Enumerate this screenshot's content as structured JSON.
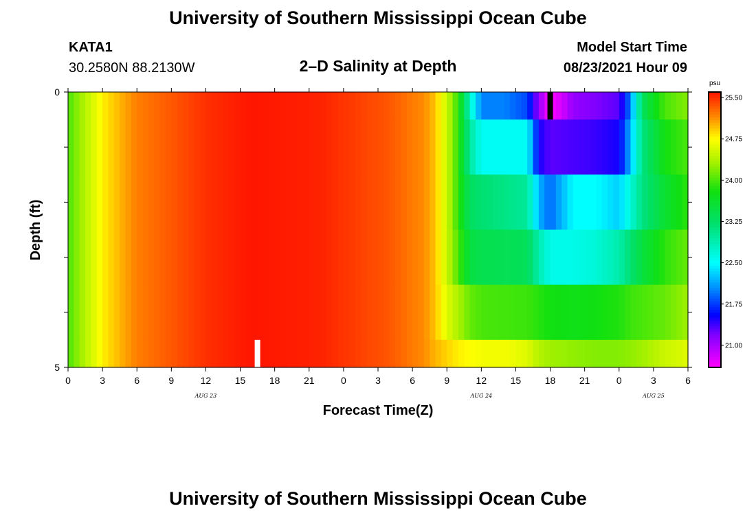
{
  "header": {
    "title_top": "University of Southern Mississippi Ocean Cube",
    "title_bottom": "University of Southern Mississippi Ocean Cube",
    "station_id": "KATA1",
    "coords": "30.2580N  88.2130W",
    "plot_title": "2–D Salinity at Depth",
    "model_label": "Model Start Time",
    "model_time": "08/23/2021 Hour 09"
  },
  "chart_data": {
    "type": "heatmap",
    "title": "2-D Salinity at Depth",
    "xlabel": "Forecast Time(Z)",
    "ylabel": "Depth (ft)",
    "x_hours_range": [
      0,
      54
    ],
    "x_tick_step_hours": 3,
    "x_tick_labels": [
      "0",
      "3",
      "6",
      "9",
      "12",
      "15",
      "18",
      "21",
      "0",
      "3",
      "6",
      "9",
      "12",
      "15",
      "18",
      "21",
      "0",
      "3",
      "6"
    ],
    "date_labels": [
      {
        "label": "AUG 23",
        "hour": 12
      },
      {
        "label": "AUG 24",
        "hour": 36
      },
      {
        "label": "AUG 25",
        "hour": 51
      }
    ],
    "y_range": [
      0,
      5
    ],
    "y_tick_labels": [
      "0",
      "5"
    ],
    "y_minor_ticks": [
      1,
      2,
      3,
      4
    ],
    "depth_levels": [
      0.25,
      0.75,
      1.25,
      1.75,
      2.25,
      2.75
    ],
    "colorbar": {
      "unit": "psu",
      "range": [
        20.6,
        25.6
      ],
      "tick_values": [
        25.5,
        24.75,
        24.0,
        23.25,
        22.5,
        21.75,
        21.0
      ],
      "tick_labels": [
        "25.50",
        "24.75",
        "24.00",
        "23.25",
        "22.50",
        "21.75",
        "21.00"
      ],
      "stops": [
        {
          "value": 20.6,
          "color": "#ff00ff"
        },
        {
          "value": 21.2,
          "color": "#8000ff"
        },
        {
          "value": 21.55,
          "color": "#0000ff"
        },
        {
          "value": 22.05,
          "color": "#0090ff"
        },
        {
          "value": 22.5,
          "color": "#00ffff"
        },
        {
          "value": 23.2,
          "color": "#00e070"
        },
        {
          "value": 23.8,
          "color": "#10e010"
        },
        {
          "value": 24.3,
          "color": "#a0f000"
        },
        {
          "value": 24.75,
          "color": "#ffff00"
        },
        {
          "value": 25.1,
          "color": "#ff9900"
        },
        {
          "value": 25.6,
          "color": "#ff1500"
        }
      ]
    },
    "current_time_marker_hour": 16.5,
    "max_salinity_marker_hour": 42.0,
    "series": [
      {
        "name": "upper_band",
        "depth": [
          0.0,
          0.5
        ],
        "hours": [
          0,
          3,
          6,
          12,
          16,
          22,
          28,
          31,
          32,
          33,
          34,
          35,
          36,
          38,
          40,
          41,
          42,
          43,
          44,
          46,
          48,
          49,
          50,
          51,
          52,
          54
        ],
        "values": [
          24.0,
          24.8,
          25.2,
          25.5,
          25.6,
          25.55,
          25.35,
          25.15,
          24.95,
          24.5,
          23.9,
          22.8,
          22.0,
          22.0,
          21.8,
          21.1,
          20.6,
          20.8,
          21.1,
          21.2,
          21.3,
          22.0,
          23.3,
          23.7,
          24.0,
          24.2
        ]
      },
      {
        "name": "band_2",
        "depth": [
          0.5,
          1.5
        ],
        "hours": [
          0,
          3,
          6,
          12,
          16,
          22,
          28,
          31,
          32,
          33,
          34,
          35,
          36,
          40,
          41,
          42,
          44,
          46,
          48,
          49,
          50,
          52,
          54
        ],
        "values": [
          24.0,
          24.8,
          25.2,
          25.5,
          25.6,
          25.55,
          25.35,
          25.15,
          24.95,
          24.5,
          23.9,
          23.0,
          22.55,
          22.55,
          21.5,
          21.3,
          21.35,
          21.4,
          21.5,
          22.2,
          23.1,
          23.8,
          24.0
        ]
      },
      {
        "name": "band_3",
        "depth": [
          1.5,
          2.5
        ],
        "hours": [
          0,
          3,
          6,
          12,
          16,
          22,
          28,
          31,
          32,
          33,
          34,
          35,
          36,
          40,
          41,
          42,
          44,
          46,
          48,
          49,
          50,
          52,
          54
        ],
        "values": [
          24.0,
          24.8,
          25.2,
          25.5,
          25.6,
          25.55,
          25.35,
          25.15,
          24.95,
          24.5,
          23.9,
          23.3,
          23.2,
          23.0,
          22.2,
          21.9,
          22.5,
          22.5,
          22.3,
          22.7,
          23.1,
          23.6,
          23.9
        ]
      },
      {
        "name": "band_4",
        "depth": [
          2.5,
          3.5
        ],
        "hours": [
          0,
          3,
          6,
          12,
          16,
          22,
          28,
          31,
          32,
          33,
          34,
          35,
          36,
          40,
          41,
          42,
          44,
          46,
          48,
          49,
          50,
          52,
          54
        ],
        "values": [
          24.0,
          24.8,
          25.2,
          25.5,
          25.6,
          25.55,
          25.35,
          25.15,
          24.95,
          24.5,
          24.0,
          23.5,
          23.4,
          23.35,
          22.9,
          22.6,
          22.6,
          22.7,
          22.9,
          23.2,
          23.5,
          23.9,
          24.1
        ]
      },
      {
        "name": "band_5",
        "depth": [
          3.5,
          4.5
        ],
        "hours": [
          0,
          3,
          6,
          12,
          16,
          22,
          28,
          31,
          32,
          33,
          34,
          35,
          36,
          40,
          42,
          44,
          46,
          48,
          49,
          50,
          52,
          54
        ],
        "values": [
          24.0,
          24.8,
          25.2,
          25.5,
          25.6,
          25.55,
          25.35,
          25.15,
          24.95,
          24.6,
          24.35,
          24.1,
          24.0,
          23.95,
          23.8,
          23.75,
          23.8,
          23.85,
          23.95,
          24.0,
          24.1,
          24.3
        ]
      },
      {
        "name": "bottom_band",
        "depth": [
          4.5,
          5.0
        ],
        "hours": [
          0,
          3,
          6,
          12,
          16,
          22,
          28,
          31,
          32,
          33,
          34,
          35,
          36,
          38,
          40,
          41,
          42,
          44,
          46,
          48,
          50,
          52,
          54
        ],
        "values": [
          24.0,
          24.8,
          25.2,
          25.5,
          25.6,
          25.55,
          25.35,
          25.15,
          25.0,
          24.9,
          24.8,
          24.75,
          24.7,
          24.7,
          24.6,
          24.4,
          24.3,
          24.25,
          24.2,
          24.2,
          24.3,
          24.5,
          24.6
        ]
      }
    ]
  }
}
